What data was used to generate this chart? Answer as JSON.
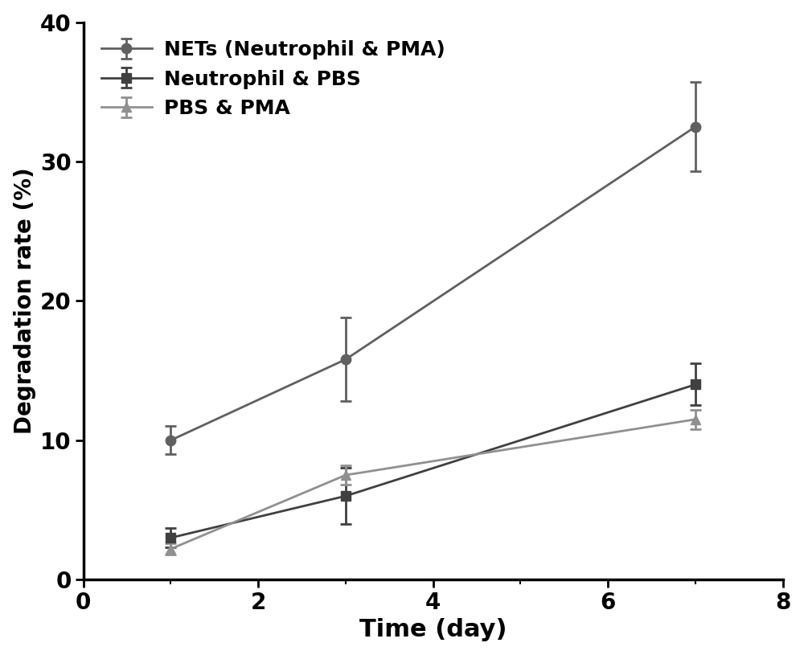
{
  "series": [
    {
      "label": "NETs (Neutrophil & PMA)",
      "x": [
        1,
        3,
        7
      ],
      "y": [
        10.0,
        15.8,
        32.5
      ],
      "yerr": [
        1.0,
        3.0,
        3.2
      ],
      "color": "#606060",
      "marker": "o",
      "markersize": 9,
      "linewidth": 2.0
    },
    {
      "label": "Neutrophil & PBS",
      "x": [
        1,
        3,
        7
      ],
      "y": [
        3.0,
        6.0,
        14.0
      ],
      "yerr": [
        0.7,
        2.0,
        1.5
      ],
      "color": "#404040",
      "marker": "s",
      "markersize": 9,
      "linewidth": 2.0
    },
    {
      "label": "PBS & PMA",
      "x": [
        1,
        3,
        7
      ],
      "y": [
        2.2,
        7.5,
        11.5
      ],
      "yerr": [
        0.4,
        0.7,
        0.7
      ],
      "color": "#909090",
      "marker": "^",
      "markersize": 9,
      "linewidth": 2.0
    }
  ],
  "xlabel": "Time (day)",
  "ylabel": "Degradation rate (%)",
  "xlim": [
    0,
    8
  ],
  "ylim": [
    0,
    40
  ],
  "xticks_major": [
    0,
    2,
    4,
    6,
    8
  ],
  "xticks_minor": [
    1,
    3,
    5,
    7
  ],
  "yticks": [
    0,
    10,
    20,
    30,
    40
  ],
  "background_color": "#ffffff",
  "xlabel_fontsize": 22,
  "ylabel_fontsize": 20,
  "tick_fontsize": 20,
  "legend_fontsize": 18,
  "capsize": 5
}
